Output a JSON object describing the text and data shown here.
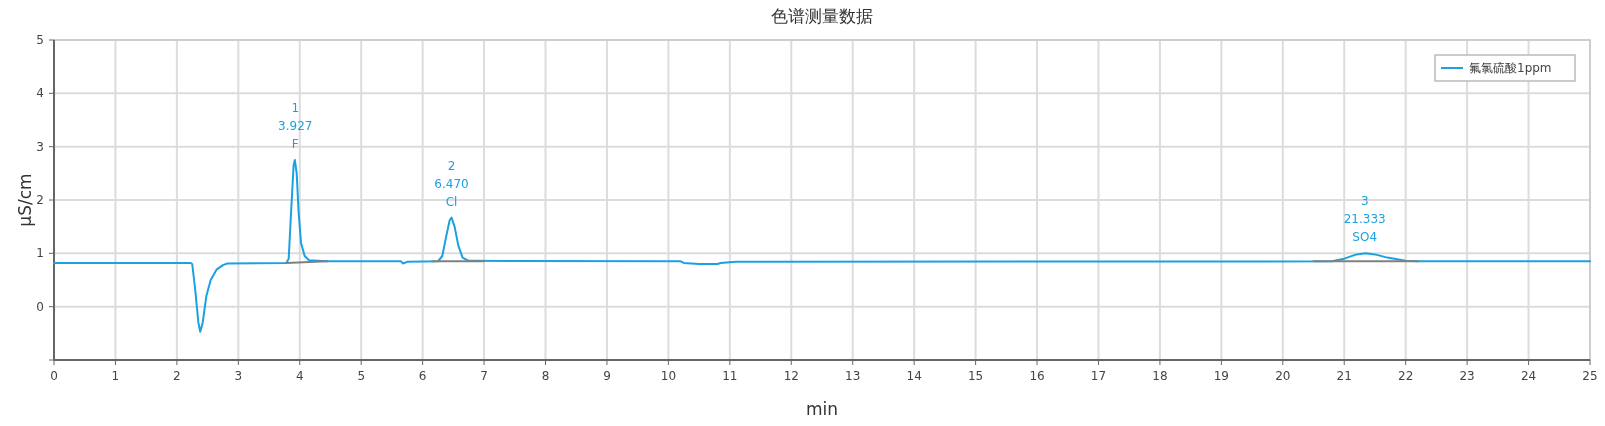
{
  "chart_data": {
    "type": "line",
    "title": "色谱测量数据",
    "xlabel": "min",
    "ylabel": "µS/cm",
    "xlim": [
      0,
      25
    ],
    "xticks": [
      0,
      1,
      2,
      3,
      4,
      5,
      6,
      7,
      8,
      9,
      10,
      11,
      12,
      13,
      14,
      15,
      16,
      17,
      18,
      19,
      20,
      21,
      22,
      23,
      24,
      25
    ],
    "ylim": [
      -1,
      5
    ],
    "yticks": [
      {
        "value": -1,
        "label": null
      },
      0,
      1,
      2,
      3,
      4,
      5
    ],
    "grid": true,
    "legend": "top right",
    "line_style": "solid",
    "marker": "none",
    "series": [
      {
        "name": "氟氯硫酸1ppm",
        "color": "#1ba1e2",
        "x": [
          0,
          2.22,
          2.25,
          2.3,
          2.35,
          2.38,
          2.42,
          2.48,
          2.55,
          2.65,
          2.75,
          2.82,
          3.78,
          3.82,
          3.86,
          3.9,
          3.92,
          3.95,
          3.98,
          4.02,
          4.08,
          4.15,
          4.45,
          5.65,
          5.68,
          5.75,
          6.25,
          6.32,
          6.38,
          6.44,
          6.47,
          6.52,
          6.58,
          6.65,
          6.75,
          10.2,
          10.25,
          10.5,
          10.8,
          10.85,
          11.1,
          20.8,
          21.0,
          21.2,
          21.35,
          21.5,
          21.7,
          22.0,
          22.2,
          25
        ],
        "values": [
          0.82,
          0.82,
          0.8,
          0.3,
          -0.3,
          -0.47,
          -0.3,
          0.2,
          0.5,
          0.7,
          0.78,
          0.81,
          0.82,
          0.9,
          1.8,
          2.65,
          2.75,
          2.5,
          1.8,
          1.2,
          0.95,
          0.87,
          0.85,
          0.85,
          0.81,
          0.84,
          0.85,
          0.95,
          1.3,
          1.62,
          1.67,
          1.5,
          1.15,
          0.92,
          0.86,
          0.85,
          0.82,
          0.8,
          0.8,
          0.82,
          0.84,
          0.85,
          0.9,
          0.98,
          1.0,
          0.98,
          0.92,
          0.86,
          0.85,
          0.85
        ]
      },
      {
        "color": "#808080",
        "x": [
          3.78,
          4.45
        ],
        "values": [
          0.82,
          0.85
        ]
      },
      {
        "color": "#808080",
        "x": [
          6.15,
          7.0
        ],
        "values": [
          0.85,
          0.85
        ]
      },
      {
        "color": "#808080",
        "x": [
          20.5,
          22.2
        ],
        "values": [
          0.85,
          0.85
        ]
      }
    ],
    "annotations": [
      {
        "text": "1\n3.927\nF",
        "x": 3.927,
        "y": 2.75
      },
      {
        "text": "2\n6.470\nCl",
        "x": 6.47,
        "y": 1.67
      },
      {
        "text": "3\n21.333\nSO4",
        "x": 21.333,
        "y": 1.0
      }
    ]
  }
}
